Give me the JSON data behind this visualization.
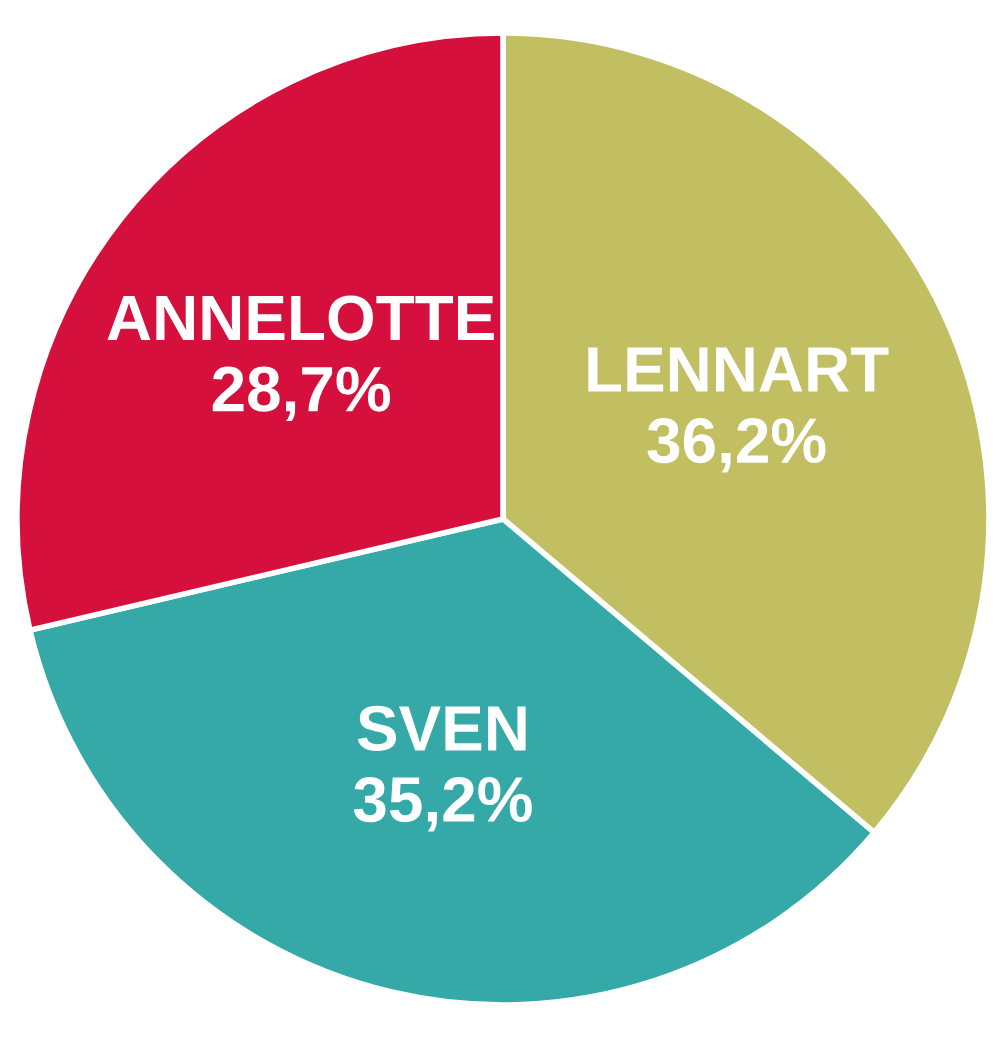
{
  "chart_data": {
    "type": "pie",
    "categories": [
      "LENNART",
      "SVEN",
      "ANNELOTTE"
    ],
    "values": [
      36.2,
      35.2,
      28.7
    ],
    "value_labels": [
      "36,2%",
      "35,2%",
      "28,7%"
    ],
    "colors": [
      "#c2bf63",
      "#34a9a8",
      "#d6103c"
    ]
  }
}
